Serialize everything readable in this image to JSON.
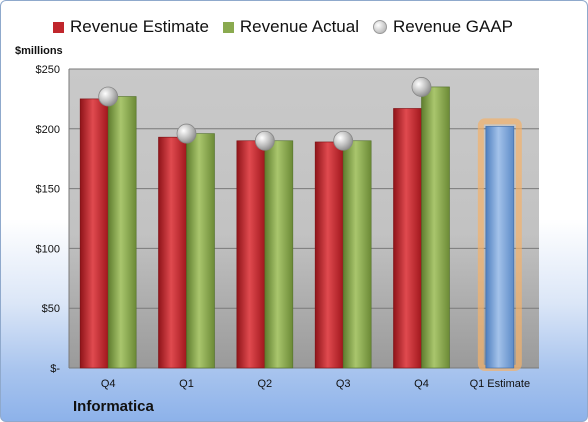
{
  "chart_data": {
    "type": "bar",
    "categories": [
      "Q4",
      "Q1",
      "Q2",
      "Q3",
      "Q4",
      "Q1 Estimate"
    ],
    "series": [
      {
        "name": "Revenue Estimate",
        "values": [
          225,
          193,
          190,
          189,
          217,
          null
        ],
        "color": "#c0262c"
      },
      {
        "name": "Revenue Actual",
        "values": [
          227,
          196,
          190,
          190,
          235,
          null
        ],
        "color": "#8aaa4f"
      },
      {
        "name": "Revenue GAAP",
        "values": [
          227,
          196,
          190,
          190,
          235,
          null
        ],
        "color": "#b5b5b5",
        "marker": "circle"
      },
      {
        "values": [
          null,
          null,
          null,
          null,
          null,
          202
        ],
        "color": "#7ea3d6",
        "highlight": "#f4b26b"
      }
    ],
    "ylabel": "$millions",
    "ylim": [
      0,
      250
    ],
    "yticks": [
      0,
      50,
      100,
      150,
      200,
      250
    ],
    "ytick_labels": [
      "$-",
      "$50",
      "$100",
      "$150",
      "$200",
      "$250"
    ],
    "grid": true,
    "legend": "top"
  },
  "branding": {
    "company": "Informatica"
  }
}
